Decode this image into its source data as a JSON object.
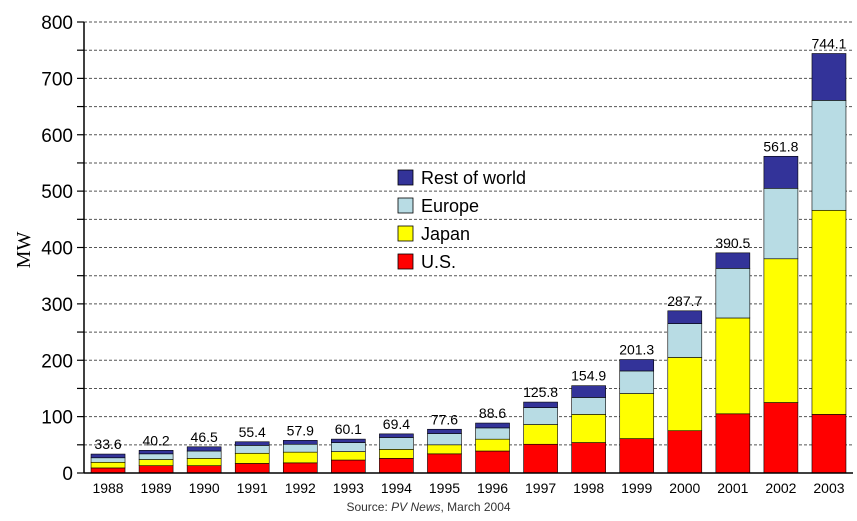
{
  "chart_data": {
    "type": "bar",
    "stacked": true,
    "categories": [
      "1988",
      "1989",
      "1990",
      "1991",
      "1992",
      "1993",
      "1994",
      "1995",
      "1996",
      "1997",
      "1998",
      "1999",
      "2000",
      "2001",
      "2002",
      "2003"
    ],
    "series": [
      {
        "name": "U.S.",
        "color": "#ff0000",
        "values": [
          9,
          13,
          13,
          17,
          18,
          23,
          26,
          34,
          39,
          51,
          54,
          61,
          75,
          105,
          125,
          104
        ]
      },
      {
        "name": "Japan",
        "color": "#ffff00",
        "values": [
          10,
          11,
          13,
          18,
          19,
          15,
          16,
          16,
          21,
          35,
          50,
          80,
          130,
          170,
          255,
          362
        ]
      },
      {
        "name": "Europe",
        "color": "#b8dce4",
        "values": [
          8,
          10,
          13,
          14,
          14,
          16,
          21,
          20,
          20,
          30,
          30,
          40,
          60,
          88,
          125,
          195
        ]
      },
      {
        "name": "Rest of world",
        "color": "#333399",
        "values": [
          6.6,
          6.2,
          7.5,
          6.4,
          6.9,
          6.1,
          6.4,
          7.6,
          8.6,
          9.8,
          20.9,
          20.3,
          22.7,
          27.5,
          56.8,
          83.1
        ]
      }
    ],
    "totals": [
      "33.6",
      "40.2",
      "46.5",
      "55.4",
      "57.9",
      "60.1",
      "69.4",
      "77.6",
      "88.6",
      "125.8",
      "154.9",
      "201.3",
      "287.7",
      "390.5",
      "561.8",
      "744.1"
    ],
    "ylabel": "MW",
    "ylim": [
      0,
      800
    ],
    "yticks": [
      0,
      100,
      200,
      300,
      400,
      500,
      600,
      700,
      800
    ],
    "grid": "dashed horizontal",
    "legend_position": "center-left",
    "legend_order": [
      "Rest of world",
      "Europe",
      "Japan",
      "U.S."
    ]
  },
  "source": {
    "prefix": "Source: ",
    "publication": "PV News",
    "suffix": ", March 2004"
  }
}
